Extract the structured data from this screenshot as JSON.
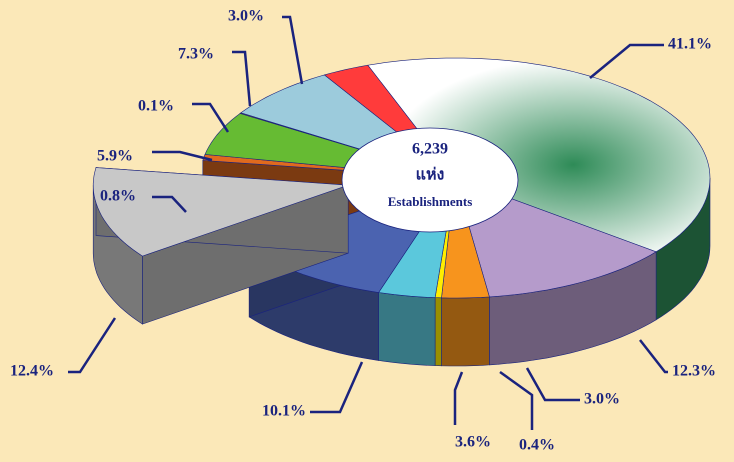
{
  "chart_data": {
    "type": "pie",
    "values": [
      41.1,
      12.3,
      3.0,
      0.4,
      3.6,
      10.1,
      12.4,
      0.8,
      5.9,
      0.1,
      7.3,
      3.0
    ],
    "value_labels": [
      "41.1%",
      "12.3%",
      "3.0%",
      "0.4%",
      "3.6%",
      "10.1%",
      "12.4%",
      "0.8%",
      "5.9%",
      "0.1%",
      "7.3%",
      "3.0%"
    ],
    "colors": [
      "#2e8b57",
      "#b59bcb",
      "#f7941d",
      "#ffee00",
      "#5bc8dc",
      "#4b63b0",
      "#c8c8c8",
      "#e06a1e",
      "#66bb33",
      "#a0522d",
      "#9ccbdc",
      "#ff3b3b"
    ],
    "exploded": [
      6
    ],
    "annotations": [
      "6,239",
      "แห่ง",
      "Establishments"
    ]
  }
}
